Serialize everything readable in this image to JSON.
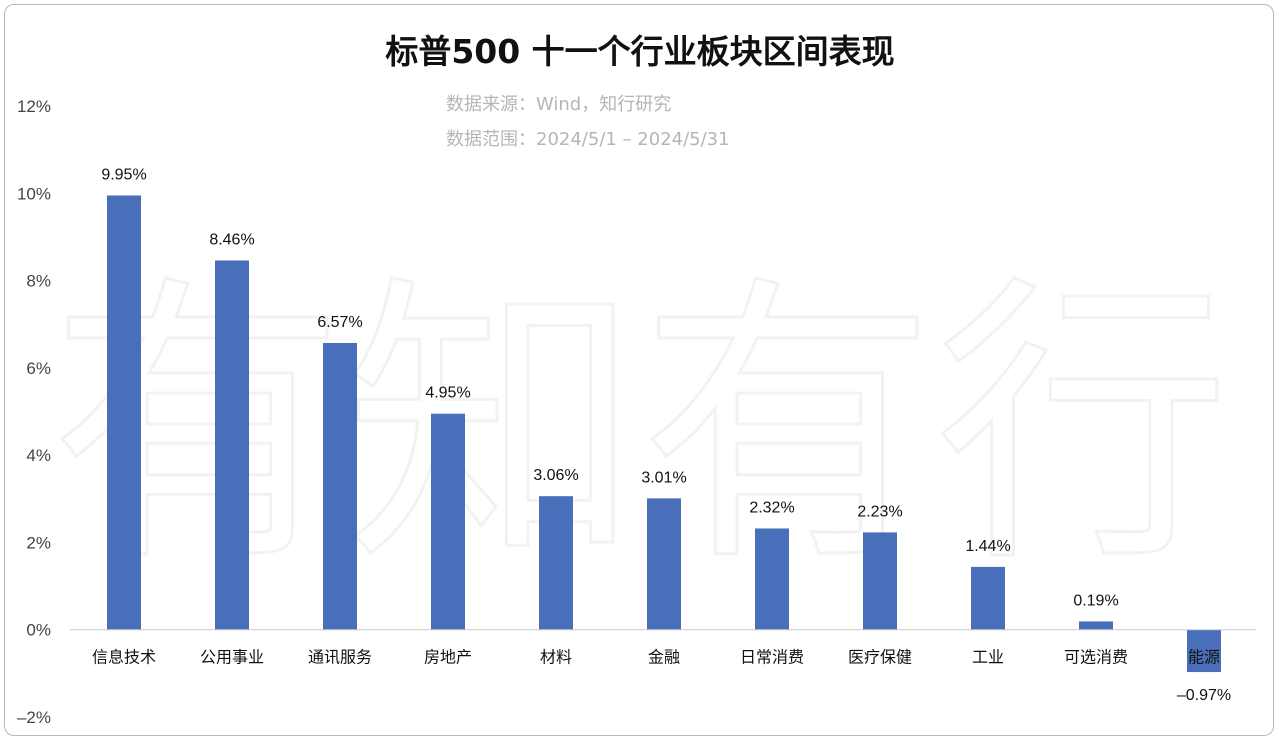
{
  "chart_data": {
    "type": "bar",
    "title": "标普500 十一个行业板块区间表现",
    "subtitle_lines": [
      "数据来源：Wind，知行研究",
      "数据范围：2024/5/1 – 2024/5/31"
    ],
    "watermark": "有知有行",
    "categories": [
      "信息技术",
      "公用事业",
      "通讯服务",
      "房地产",
      "材料",
      "金融",
      "日常消费",
      "医疗保健",
      "工业",
      "可选消费",
      "能源"
    ],
    "values": [
      9.95,
      8.46,
      6.57,
      4.95,
      3.06,
      3.01,
      2.32,
      2.23,
      1.44,
      0.19,
      -0.97
    ],
    "data_labels": [
      "9.95%",
      "8.46%",
      "6.57%",
      "4.95%",
      "3.06%",
      "3.01%",
      "2.32%",
      "2.23%",
      "1.44%",
      "0.19%",
      "–0.97%"
    ],
    "ylim": [
      -2,
      12
    ],
    "yticks": [
      12,
      10,
      8,
      6,
      4,
      2,
      0,
      -2
    ],
    "ytick_labels": [
      "12%",
      "10%",
      "8%",
      "6%",
      "4%",
      "2%",
      "0%",
      "–2%"
    ],
    "xlabel": "",
    "ylabel": "",
    "grid": false,
    "legend": "none",
    "bar_color": "#4a6fba",
    "axis_color": "#cccccc"
  }
}
